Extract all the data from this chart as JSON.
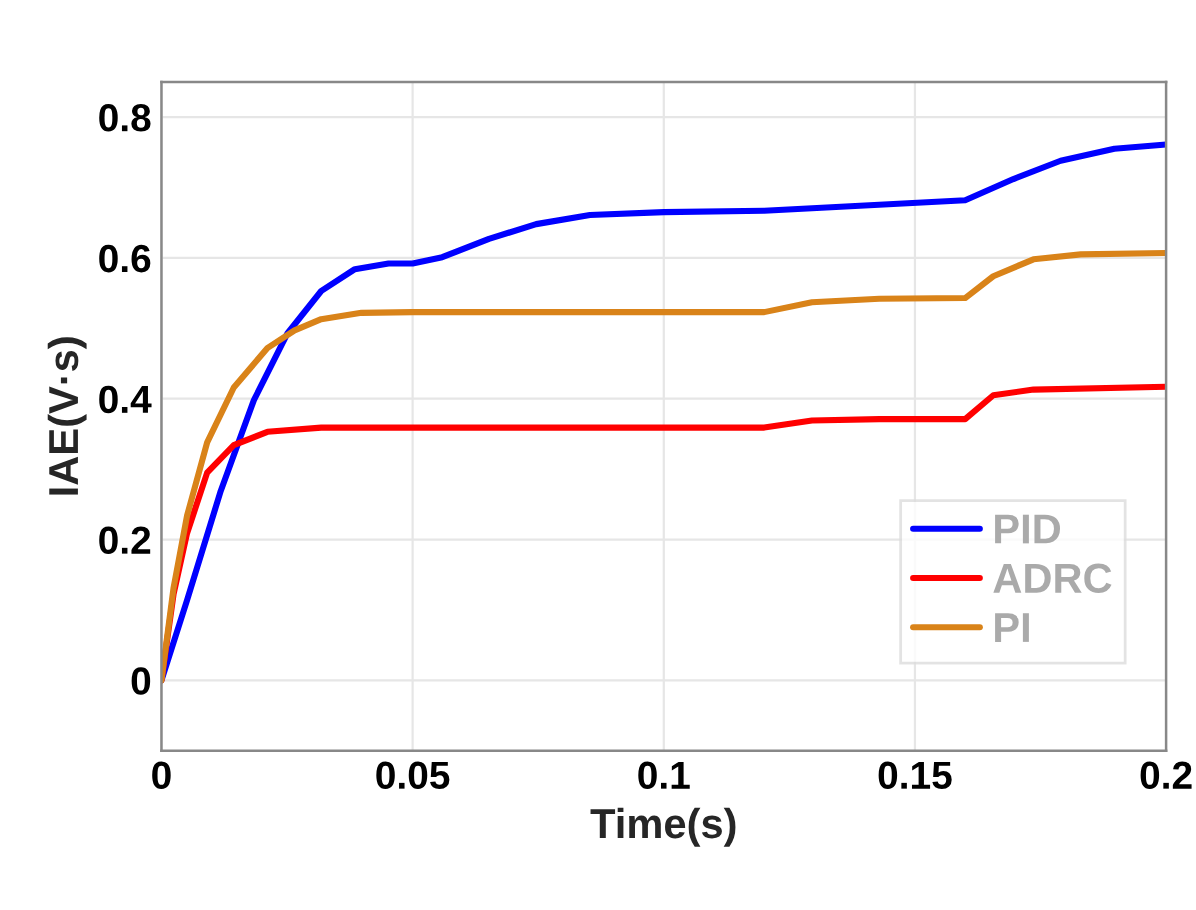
{
  "chart_data": {
    "type": "line",
    "xlabel": "Time(s)",
    "ylabel": "IAE(V·s)",
    "xlim": [
      0,
      0.2
    ],
    "xticks": [
      0,
      0.05,
      0.1,
      0.15,
      0.2
    ],
    "ylim": [
      -0.1,
      0.85
    ],
    "yticks": [
      0,
      0.2,
      0.4,
      0.6,
      0.8
    ],
    "grid": true,
    "legend": "bottom right",
    "line_style": "solid",
    "series": [
      {
        "name": "PID",
        "color": "#0000ff",
        "x": [
          0,
          0.0051,
          0.0118,
          0.0184,
          0.0251,
          0.0318,
          0.0385,
          0.0452,
          0.05,
          0.0559,
          0.0652,
          0.0746,
          0.0853,
          0.1,
          0.12,
          0.16,
          0.1696,
          0.179,
          0.1897,
          0.2
        ],
        "values": [
          0,
          0.114,
          0.269,
          0.398,
          0.493,
          0.553,
          0.584,
          0.592,
          0.592,
          0.601,
          0.627,
          0.648,
          0.661,
          0.665,
          0.667,
          0.682,
          0.712,
          0.738,
          0.755,
          0.761
        ]
      },
      {
        "name": "ADRC",
        "color": "#ff0000",
        "x": [
          0,
          0.0024,
          0.0051,
          0.0091,
          0.0144,
          0.0211,
          0.0318,
          0.05,
          0.1,
          0.12,
          0.1295,
          0.1429,
          0.16,
          0.1656,
          0.1736,
          0.2
        ],
        "values": [
          0,
          0.122,
          0.209,
          0.295,
          0.334,
          0.353,
          0.359,
          0.359,
          0.359,
          0.359,
          0.369,
          0.371,
          0.371,
          0.405,
          0.413,
          0.417
        ]
      },
      {
        "name": "PI",
        "color": "#d98319",
        "x": [
          0,
          0.0024,
          0.0051,
          0.0091,
          0.0144,
          0.0211,
          0.0265,
          0.0318,
          0.0398,
          0.05,
          0.1,
          0.12,
          0.1295,
          0.1429,
          0.16,
          0.1656,
          0.1736,
          0.183,
          0.2
        ],
        "values": [
          0,
          0.131,
          0.234,
          0.338,
          0.416,
          0.472,
          0.497,
          0.513,
          0.522,
          0.523,
          0.523,
          0.523,
          0.537,
          0.542,
          0.543,
          0.574,
          0.598,
          0.605,
          0.607
        ]
      }
    ]
  }
}
